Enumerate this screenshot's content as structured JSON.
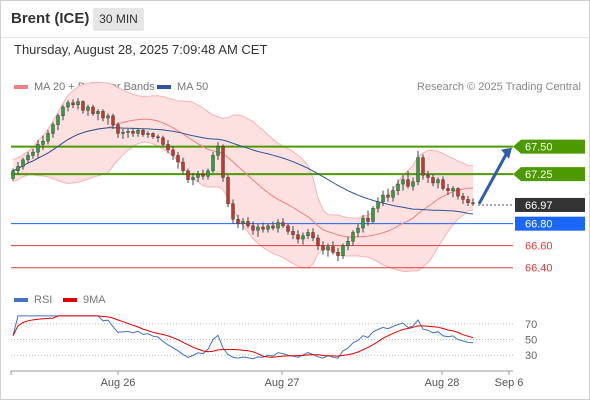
{
  "header": {
    "instrument": "Brent (ICE)",
    "timeframe": "30 MIN",
    "timestamp": "Thursday, August 28, 2025 7:09:48 AM CET"
  },
  "legend": {
    "bb_label": "MA 20 + Bollinger Bands",
    "bb_color": "#f08080",
    "ma50_label": "MA 50",
    "ma50_color": "#2f5597",
    "credit": "Research © 2025 Trading Central"
  },
  "rsi_legend": {
    "rsi_label": "RSI",
    "rsi_color": "#4472c4",
    "ma9_label": "9MA",
    "ma9_color": "#e00000"
  },
  "chart_data": [
    {
      "type": "candlestick",
      "ylim": [
        66.27,
        67.96
      ],
      "x": [
        "Aug 26",
        "Aug 27",
        "Aug 28",
        "Sep 6"
      ],
      "levels": [
        {
          "label": "67.50",
          "value": 67.5,
          "kind": "resistance",
          "color": "#4d9900"
        },
        {
          "label": "67.25",
          "value": 67.25,
          "kind": "resistance",
          "color": "#4d9900"
        },
        {
          "label": "66.97",
          "value": 66.97,
          "kind": "last-price",
          "color": "#333333"
        },
        {
          "label": "66.80",
          "value": 66.8,
          "kind": "pivot",
          "color": "#1a66ff"
        },
        {
          "label": "66.60",
          "value": 66.6,
          "kind": "support",
          "color": "#e03c3c"
        },
        {
          "label": "66.40",
          "value": 66.4,
          "kind": "support",
          "color": "#e03c3c"
        }
      ],
      "forecast_arrow": {
        "from": 66.98,
        "to": 67.49,
        "color": "#2f5fa8"
      },
      "candles": [
        [
          67.21,
          67.3,
          67.19,
          67.28
        ],
        [
          67.28,
          67.36,
          67.25,
          67.32
        ],
        [
          67.32,
          67.4,
          67.29,
          67.38
        ],
        [
          67.38,
          67.45,
          67.35,
          67.42
        ],
        [
          67.42,
          67.48,
          67.39,
          67.45
        ],
        [
          67.45,
          67.56,
          67.4,
          67.52
        ],
        [
          67.52,
          67.6,
          67.47,
          67.55
        ],
        [
          67.55,
          67.65,
          67.52,
          67.62
        ],
        [
          67.62,
          67.72,
          67.58,
          67.7
        ],
        [
          67.7,
          67.8,
          67.65,
          67.78
        ],
        [
          67.78,
          67.88,
          67.74,
          67.86
        ],
        [
          67.86,
          67.92,
          67.82,
          67.9
        ],
        [
          67.9,
          67.93,
          67.85,
          67.88
        ],
        [
          67.88,
          67.94,
          67.84,
          67.91
        ],
        [
          67.91,
          67.92,
          67.8,
          67.83
        ],
        [
          67.83,
          67.88,
          67.78,
          67.86
        ],
        [
          67.86,
          67.88,
          67.78,
          67.8
        ],
        [
          67.8,
          67.84,
          67.74,
          67.82
        ],
        [
          67.82,
          67.84,
          67.73,
          67.76
        ],
        [
          67.76,
          67.8,
          67.7,
          67.78
        ],
        [
          67.78,
          67.8,
          67.66,
          67.7
        ],
        [
          67.7,
          67.72,
          67.58,
          67.62
        ],
        [
          67.62,
          67.66,
          67.57,
          67.63
        ],
        [
          67.63,
          67.66,
          67.58,
          67.64
        ],
        [
          67.64,
          67.67,
          67.59,
          67.62
        ],
        [
          67.62,
          67.66,
          67.59,
          67.65
        ],
        [
          67.65,
          67.66,
          67.59,
          67.61
        ],
        [
          67.61,
          67.64,
          67.58,
          67.62
        ],
        [
          67.62,
          67.63,
          67.57,
          67.59
        ],
        [
          67.59,
          67.61,
          67.54,
          67.58
        ],
        [
          67.58,
          67.6,
          67.5,
          67.52
        ],
        [
          67.52,
          67.56,
          67.44,
          67.47
        ],
        [
          67.47,
          67.5,
          67.38,
          67.42
        ],
        [
          67.42,
          67.45,
          67.3,
          67.36
        ],
        [
          67.36,
          67.4,
          67.25,
          67.28
        ],
        [
          67.28,
          67.3,
          67.17,
          67.2
        ],
        [
          67.2,
          67.26,
          67.15,
          67.22
        ],
        [
          67.22,
          67.28,
          67.18,
          67.25
        ],
        [
          67.25,
          67.29,
          67.2,
          67.23
        ],
        [
          67.23,
          67.3,
          67.2,
          67.28
        ],
        [
          67.28,
          67.45,
          67.26,
          67.42
        ],
        [
          67.42,
          67.54,
          67.38,
          67.5
        ],
        [
          67.5,
          67.52,
          67.18,
          67.22
        ],
        [
          67.22,
          67.24,
          66.95,
          66.98
        ],
        [
          66.98,
          67.02,
          66.8,
          66.84
        ],
        [
          66.84,
          66.88,
          66.76,
          66.8
        ],
        [
          66.8,
          66.85,
          66.74,
          66.82
        ],
        [
          66.82,
          66.86,
          66.76,
          66.78
        ],
        [
          66.78,
          66.82,
          66.7,
          66.74
        ],
        [
          66.74,
          66.8,
          66.68,
          66.77
        ],
        [
          66.77,
          66.81,
          66.72,
          66.75
        ],
        [
          66.75,
          66.8,
          66.72,
          66.78
        ],
        [
          66.78,
          66.82,
          66.74,
          66.76
        ],
        [
          66.76,
          66.84,
          66.72,
          66.81
        ],
        [
          66.81,
          66.85,
          66.76,
          66.78
        ],
        [
          66.78,
          66.8,
          66.7,
          66.73
        ],
        [
          66.73,
          66.78,
          66.66,
          66.7
        ],
        [
          66.7,
          66.74,
          66.62,
          66.66
        ],
        [
          66.66,
          66.72,
          66.61,
          66.69
        ],
        [
          66.69,
          66.75,
          66.66,
          66.72
        ],
        [
          66.72,
          66.76,
          66.64,
          66.67
        ],
        [
          66.67,
          66.7,
          66.56,
          66.6
        ],
        [
          66.6,
          66.64,
          66.52,
          66.56
        ],
        [
          66.56,
          66.62,
          66.5,
          66.59
        ],
        [
          66.59,
          66.64,
          66.52,
          66.54
        ],
        [
          66.54,
          66.58,
          66.46,
          66.51
        ],
        [
          66.51,
          66.62,
          66.48,
          66.6
        ],
        [
          66.6,
          66.68,
          66.56,
          66.64
        ],
        [
          66.64,
          66.74,
          66.6,
          66.72
        ],
        [
          66.72,
          66.8,
          66.68,
          66.76
        ],
        [
          66.76,
          66.88,
          66.72,
          66.85
        ],
        [
          66.85,
          66.92,
          66.78,
          66.82
        ],
        [
          66.82,
          66.96,
          66.8,
          66.94
        ],
        [
          66.94,
          67.04,
          66.9,
          67.0
        ],
        [
          67.0,
          67.1,
          66.96,
          67.06
        ],
        [
          67.06,
          67.12,
          67.0,
          67.04
        ],
        [
          67.04,
          67.14,
          67.0,
          67.1
        ],
        [
          67.1,
          67.2,
          67.06,
          67.16
        ],
        [
          67.16,
          67.24,
          67.1,
          67.2
        ],
        [
          67.2,
          67.28,
          67.12,
          67.14
        ],
        [
          67.14,
          67.22,
          67.1,
          67.18
        ],
        [
          67.18,
          67.46,
          67.15,
          67.4
        ],
        [
          67.4,
          67.43,
          67.2,
          67.24
        ],
        [
          67.24,
          67.28,
          67.17,
          67.22
        ],
        [
          67.22,
          67.25,
          67.14,
          67.17
        ],
        [
          67.17,
          67.22,
          67.12,
          67.2
        ],
        [
          67.2,
          67.23,
          67.1,
          67.12
        ],
        [
          67.12,
          67.16,
          67.06,
          67.1
        ],
        [
          67.1,
          67.14,
          67.04,
          67.12
        ],
        [
          67.12,
          67.13,
          67.02,
          67.05
        ],
        [
          67.05,
          67.08,
          66.98,
          67.02
        ],
        [
          67.02,
          67.05,
          66.96,
          66.99
        ],
        [
          66.99,
          67.03,
          66.96,
          66.98
        ]
      ]
    },
    {
      "type": "line",
      "series": [
        {
          "name": "RSI"
        },
        {
          "name": "9MA"
        }
      ],
      "ylim": [
        15,
        85
      ],
      "y_ticks": [
        70,
        50,
        30
      ],
      "x": [
        "Aug 26",
        "Aug 27",
        "Aug 28",
        "Sep 6"
      ]
    }
  ]
}
